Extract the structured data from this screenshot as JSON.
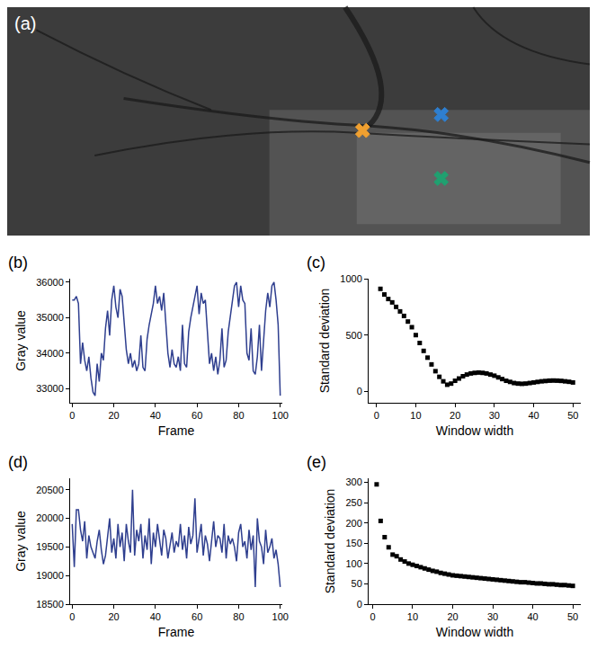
{
  "chart_data": [
    {
      "type": "scatter",
      "title": "(a)",
      "tick_labels": false,
      "marker": "x",
      "x": [
        0.61,
        0.745,
        0.745
      ],
      "y": [
        0.46,
        0.53,
        0.25
      ],
      "colors": [
        "#f0a030",
        "#2e7fd0",
        "#20a070"
      ],
      "xlim": [
        0,
        1
      ],
      "ylim": [
        0,
        1
      ]
    },
    {
      "type": "line",
      "title": "(b)",
      "x_label": "Frame",
      "y_label": "Gray value",
      "color": "#2f3f8f",
      "x": [
        0,
        1,
        2,
        3,
        4,
        5,
        6,
        7,
        8,
        9,
        10,
        11,
        12,
        13,
        14,
        15,
        16,
        17,
        18,
        19,
        20,
        21,
        22,
        23,
        24,
        25,
        26,
        27,
        28,
        29,
        30,
        31,
        32,
        33,
        34,
        35,
        36,
        37,
        38,
        39,
        40,
        41,
        42,
        43,
        44,
        45,
        46,
        47,
        48,
        49,
        50,
        51,
        52,
        53,
        54,
        55,
        56,
        57,
        58,
        59,
        60,
        61,
        62,
        63,
        64,
        65,
        66,
        67,
        68,
        69,
        70,
        71,
        72,
        73,
        74,
        75,
        76,
        77,
        78,
        79,
        80,
        81,
        82,
        83,
        84,
        85,
        86,
        87,
        88,
        89,
        90,
        91,
        92,
        93,
        94,
        95,
        96,
        97,
        98,
        99,
        100
      ],
      "values": [
        35500,
        35500,
        35600,
        35400,
        33700,
        34300,
        33800,
        33500,
        33900,
        33300,
        32900,
        32800,
        33700,
        33200,
        34000,
        33800,
        34700,
        35200,
        34500,
        35500,
        35900,
        35300,
        35000,
        35800,
        35600,
        34800,
        34100,
        33700,
        34000,
        33600,
        33800,
        33500,
        33700,
        34500,
        33600,
        33500,
        34400,
        34800,
        35100,
        35400,
        35900,
        35400,
        35600,
        35200,
        35700,
        34900,
        34000,
        33600,
        34100,
        33700,
        33600,
        33900,
        33500,
        34800,
        33700,
        33600,
        34600,
        35000,
        35300,
        35600,
        35900,
        35100,
        35700,
        35400,
        35500,
        34600,
        33700,
        34000,
        33500,
        33900,
        33400,
        33800,
        34700,
        33600,
        33800,
        34600,
        35000,
        35500,
        35900,
        36000,
        35300,
        35900,
        35500,
        35400,
        34000,
        33800,
        34700,
        33500,
        33400,
        33900,
        34800,
        33500,
        34500,
        35200,
        35700,
        35300,
        35900,
        36000,
        35500,
        34800,
        32800
      ],
      "xlim": [
        -1,
        101
      ],
      "xticks": [
        0,
        20,
        40,
        60,
        80,
        100
      ],
      "ylim": [
        32600,
        36100
      ],
      "yticks": [
        33000,
        34000,
        35000,
        36000
      ],
      "grid": false
    },
    {
      "type": "scatter",
      "title": "(c)",
      "x_label": "Window width",
      "y_label": "Standard deviation",
      "color": "#000000",
      "marker": "square",
      "x": [
        1,
        2,
        3,
        4,
        5,
        6,
        7,
        8,
        9,
        10,
        11,
        12,
        13,
        14,
        15,
        16,
        17,
        18,
        19,
        20,
        21,
        22,
        23,
        24,
        25,
        26,
        27,
        28,
        29,
        30,
        31,
        32,
        33,
        34,
        35,
        36,
        37,
        38,
        39,
        40,
        41,
        42,
        43,
        44,
        45,
        46,
        47,
        48,
        49,
        50
      ],
      "values": [
        910,
        860,
        820,
        790,
        750,
        710,
        670,
        620,
        570,
        500,
        430,
        360,
        300,
        240,
        180,
        130,
        90,
        60,
        70,
        95,
        115,
        135,
        150,
        160,
        165,
        168,
        165,
        160,
        150,
        140,
        125,
        110,
        95,
        85,
        75,
        70,
        68,
        70,
        75,
        80,
        85,
        90,
        93,
        96,
        97,
        96,
        94,
        90,
        86,
        80
      ],
      "xlim": [
        -2,
        52
      ],
      "xticks": [
        0,
        10,
        20,
        30,
        40,
        50
      ],
      "ylim": [
        -100,
        1000
      ],
      "yticks": [
        0,
        500,
        1000
      ],
      "grid": false
    },
    {
      "type": "line",
      "title": "(d)",
      "x_label": "Frame",
      "y_label": "Gray value",
      "color": "#2f3f8f",
      "x": [
        0,
        1,
        2,
        3,
        4,
        5,
        6,
        7,
        8,
        9,
        10,
        11,
        12,
        13,
        14,
        15,
        16,
        17,
        18,
        19,
        20,
        21,
        22,
        23,
        24,
        25,
        26,
        27,
        28,
        29,
        30,
        31,
        32,
        33,
        34,
        35,
        36,
        37,
        38,
        39,
        40,
        41,
        42,
        43,
        44,
        45,
        46,
        47,
        48,
        49,
        50,
        51,
        52,
        53,
        54,
        55,
        56,
        57,
        58,
        59,
        60,
        61,
        62,
        63,
        64,
        65,
        66,
        67,
        68,
        69,
        70,
        71,
        72,
        73,
        74,
        75,
        76,
        77,
        78,
        79,
        80,
        81,
        82,
        83,
        84,
        85,
        86,
        87,
        88,
        89,
        90,
        91,
        92,
        93,
        94,
        95,
        96,
        97,
        98,
        99,
        100
      ],
      "values": [
        19900,
        19150,
        20150,
        20150,
        19800,
        19600,
        19950,
        19300,
        19700,
        19500,
        19400,
        19300,
        19600,
        19800,
        19450,
        19200,
        19350,
        19700,
        20000,
        19400,
        19650,
        19300,
        19900,
        19500,
        19750,
        19250,
        19900,
        19600,
        19400,
        20500,
        19350,
        19800,
        19600,
        19900,
        19300,
        19700,
        19450,
        20000,
        19200,
        19750,
        19500,
        19900,
        19600,
        19350,
        19800,
        19650,
        19300,
        19550,
        19750,
        19400,
        19600,
        19500,
        19900,
        19450,
        19700,
        19300,
        19850,
        19550,
        19700,
        20350,
        19400,
        19650,
        19900,
        19350,
        19700,
        19550,
        19250,
        19600,
        19950,
        19500,
        19700,
        19650,
        19400,
        19900,
        19300,
        19700,
        19550,
        19650,
        19500,
        19250,
        19750,
        19900,
        19500,
        19600,
        19300,
        19800,
        19450,
        19700,
        18800,
        20000,
        19600,
        19500,
        19200,
        19800,
        19400,
        19500,
        19650,
        19300,
        19450,
        19200,
        18800
      ],
      "xlim": [
        -1,
        101
      ],
      "xticks": [
        0,
        20,
        40,
        60,
        80,
        100
      ],
      "ylim": [
        18500,
        20700
      ],
      "yticks": [
        18500,
        19000,
        19500,
        20000,
        20500
      ],
      "grid": false
    },
    {
      "type": "scatter",
      "title": "(e)",
      "x_label": "Window width",
      "y_label": "Standard deviation",
      "color": "#000000",
      "marker": "square",
      "x": [
        1,
        2,
        3,
        4,
        5,
        6,
        7,
        8,
        9,
        10,
        11,
        12,
        13,
        14,
        15,
        16,
        17,
        18,
        19,
        20,
        21,
        22,
        23,
        24,
        25,
        26,
        27,
        28,
        29,
        30,
        31,
        32,
        33,
        34,
        35,
        36,
        37,
        38,
        39,
        40,
        41,
        42,
        43,
        44,
        45,
        46,
        47,
        48,
        49,
        50
      ],
      "values": [
        295,
        205,
        165,
        140,
        122,
        118,
        110,
        105,
        100,
        97,
        94,
        91,
        88,
        85,
        82,
        80,
        77,
        75,
        73,
        71,
        70,
        69,
        68,
        67,
        66,
        65,
        64,
        63,
        62,
        61,
        60,
        59,
        58,
        57,
        56,
        55,
        54,
        54,
        53,
        52,
        51,
        51,
        50,
        49,
        49,
        48,
        47,
        47,
        46,
        45
      ],
      "xlim": [
        -1,
        52
      ],
      "xticks": [
        0,
        10,
        20,
        30,
        40,
        50
      ],
      "ylim": [
        0,
        310
      ],
      "yticks": [
        0,
        50,
        100,
        150,
        200,
        250,
        300
      ],
      "grid": false
    }
  ]
}
